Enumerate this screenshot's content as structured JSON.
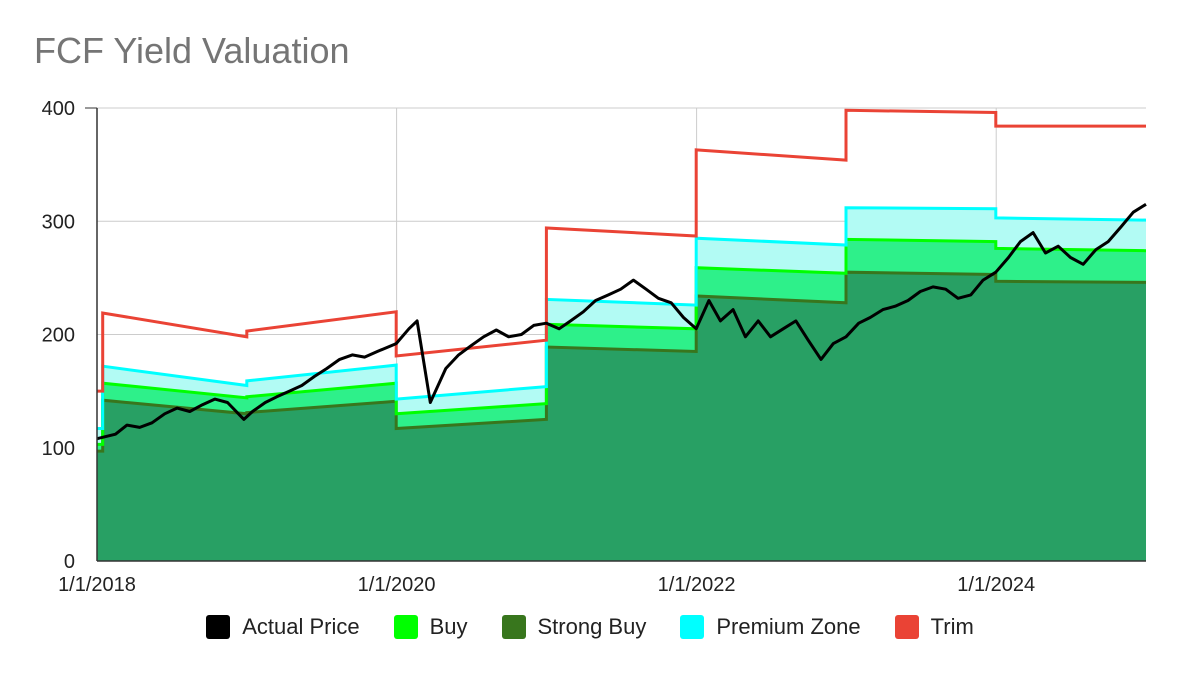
{
  "title": "FCF Yield Valuation",
  "colors": {
    "actual": "#000000",
    "buy": "#00ff00",
    "strong_buy": "#38761d",
    "premium": "#00ffff",
    "trim": "#ea4335",
    "area_strong": "#28a064",
    "area_buy": "#2ef08a",
    "area_premium": "#b2fbf4",
    "grid": "#cccccc"
  },
  "legend": [
    {
      "label": "Actual Price",
      "color": "#000000"
    },
    {
      "label": "Buy",
      "color": "#00ff00"
    },
    {
      "label": "Strong Buy",
      "color": "#38761d"
    },
    {
      "label": "Premium Zone",
      "color": "#00ffff"
    },
    {
      "label": "Trim",
      "color": "#ea4335"
    }
  ],
  "chart_data": {
    "type": "line",
    "title": "FCF Yield Valuation",
    "xlabel": "",
    "ylabel": "",
    "xlim": [
      "2018-01-01",
      "2024-12-31"
    ],
    "ylim": [
      0,
      400
    ],
    "y_ticks": [
      0,
      100,
      200,
      300,
      400
    ],
    "x_ticks": [
      "1/1/2018",
      "1/1/2020",
      "1/1/2022",
      "1/1/2024"
    ],
    "x_tick_dates": [
      "2018-01-01",
      "2020-01-01",
      "2022-01-01",
      "2024-01-01"
    ],
    "grid": true,
    "legend_position": "bottom",
    "series": [
      {
        "name": "Strong Buy",
        "segments": [
          [
            [
              "2018-01-01",
              97
            ],
            [
              "2018-01-15",
              97
            ]
          ],
          [
            [
              "2018-01-15",
              142
            ],
            [
              "2019-01-01",
              130
            ]
          ],
          [
            [
              "2019-01-01",
              131
            ],
            [
              "2019-12-31",
              141
            ]
          ],
          [
            [
              "2019-12-31",
              117
            ],
            [
              "2020-12-31",
              125
            ]
          ],
          [
            [
              "2020-12-31",
              189
            ],
            [
              "2021-12-31",
              185
            ]
          ],
          [
            [
              "2021-12-31",
              234
            ],
            [
              "2022-12-31",
              228
            ]
          ],
          [
            [
              "2022-12-31",
              255
            ],
            [
              "2023-12-31",
              253
            ]
          ],
          [
            [
              "2023-12-31",
              247
            ],
            [
              "2024-12-31",
              246
            ]
          ]
        ]
      },
      {
        "name": "Buy",
        "segments": [
          [
            [
              "2018-01-01",
              103
            ],
            [
              "2018-01-15",
              103
            ]
          ],
          [
            [
              "2018-01-15",
              157
            ],
            [
              "2019-01-01",
              144
            ]
          ],
          [
            [
              "2019-01-01",
              145
            ],
            [
              "2019-12-31",
              157
            ]
          ],
          [
            [
              "2019-12-31",
              130
            ],
            [
              "2020-12-31",
              139
            ]
          ],
          [
            [
              "2020-12-31",
              209
            ],
            [
              "2021-12-31",
              205
            ]
          ],
          [
            [
              "2021-12-31",
              259
            ],
            [
              "2022-12-31",
              254
            ]
          ],
          [
            [
              "2022-12-31",
              284
            ],
            [
              "2023-12-31",
              282
            ]
          ],
          [
            [
              "2023-12-31",
              276
            ],
            [
              "2024-12-31",
              274
            ]
          ]
        ]
      },
      {
        "name": "Premium Zone",
        "segments": [
          [
            [
              "2018-01-01",
              117
            ],
            [
              "2018-01-15",
              117
            ]
          ],
          [
            [
              "2018-01-15",
              172
            ],
            [
              "2019-01-01",
              155
            ]
          ],
          [
            [
              "2019-01-01",
              159
            ],
            [
              "2019-12-31",
              173
            ]
          ],
          [
            [
              "2019-12-31",
              143
            ],
            [
              "2020-12-31",
              154
            ]
          ],
          [
            [
              "2020-12-31",
              231
            ],
            [
              "2021-12-31",
              226
            ]
          ],
          [
            [
              "2021-12-31",
              285
            ],
            [
              "2022-12-31",
              279
            ]
          ],
          [
            [
              "2022-12-31",
              312
            ],
            [
              "2023-12-31",
              311
            ]
          ],
          [
            [
              "2023-12-31",
              303
            ],
            [
              "2024-12-31",
              301
            ]
          ]
        ]
      },
      {
        "name": "Trim",
        "segments": [
          [
            [
              "2018-01-01",
              150
            ],
            [
              "2018-01-15",
              150
            ]
          ],
          [
            [
              "2018-01-15",
              219
            ],
            [
              "2019-01-01",
              198
            ]
          ],
          [
            [
              "2019-01-01",
              203
            ],
            [
              "2019-12-31",
              220
            ]
          ],
          [
            [
              "2019-12-31",
              181
            ],
            [
              "2020-12-31",
              195
            ]
          ],
          [
            [
              "2020-12-31",
              294
            ],
            [
              "2021-12-31",
              287
            ]
          ],
          [
            [
              "2021-12-31",
              363
            ],
            [
              "2022-12-31",
              354
            ]
          ],
          [
            [
              "2022-12-31",
              398
            ],
            [
              "2023-12-31",
              396
            ]
          ],
          [
            [
              "2023-12-31",
              384
            ],
            [
              "2024-12-31",
              384
            ]
          ]
        ]
      },
      {
        "name": "Actual Price",
        "points": [
          [
            "2018-01-01",
            108
          ],
          [
            "2018-02-15",
            112
          ],
          [
            "2018-03-15",
            120
          ],
          [
            "2018-04-15",
            118
          ],
          [
            "2018-05-15",
            122
          ],
          [
            "2018-06-15",
            130
          ],
          [
            "2018-07-15",
            135
          ],
          [
            "2018-08-15",
            132
          ],
          [
            "2018-09-15",
            138
          ],
          [
            "2018-10-15",
            143
          ],
          [
            "2018-11-15",
            140
          ],
          [
            "2018-12-25",
            125
          ],
          [
            "2019-01-15",
            132
          ],
          [
            "2019-02-15",
            140
          ],
          [
            "2019-03-15",
            145
          ],
          [
            "2019-04-15",
            150
          ],
          [
            "2019-05-15",
            155
          ],
          [
            "2019-06-15",
            163
          ],
          [
            "2019-07-15",
            170
          ],
          [
            "2019-08-15",
            178
          ],
          [
            "2019-09-15",
            182
          ],
          [
            "2019-10-15",
            180
          ],
          [
            "2019-11-15",
            185
          ],
          [
            "2019-12-31",
            192
          ],
          [
            "2020-01-31",
            205
          ],
          [
            "2020-02-20",
            212
          ],
          [
            "2020-03-23",
            140
          ],
          [
            "2020-04-30",
            170
          ],
          [
            "2020-05-31",
            182
          ],
          [
            "2020-06-30",
            190
          ],
          [
            "2020-07-31",
            198
          ],
          [
            "2020-08-31",
            204
          ],
          [
            "2020-09-30",
            198
          ],
          [
            "2020-10-31",
            200
          ],
          [
            "2020-11-30",
            208
          ],
          [
            "2020-12-31",
            210
          ],
          [
            "2021-01-31",
            205
          ],
          [
            "2021-02-28",
            212
          ],
          [
            "2021-03-31",
            220
          ],
          [
            "2021-04-30",
            230
          ],
          [
            "2021-05-31",
            235
          ],
          [
            "2021-06-30",
            240
          ],
          [
            "2021-07-31",
            248
          ],
          [
            "2021-08-31",
            240
          ],
          [
            "2021-09-30",
            232
          ],
          [
            "2021-10-31",
            228
          ],
          [
            "2021-11-30",
            215
          ],
          [
            "2021-12-31",
            205
          ],
          [
            "2022-01-31",
            230
          ],
          [
            "2022-02-28",
            212
          ],
          [
            "2022-03-31",
            222
          ],
          [
            "2022-04-30",
            198
          ],
          [
            "2022-05-31",
            212
          ],
          [
            "2022-06-30",
            198
          ],
          [
            "2022-07-31",
            205
          ],
          [
            "2022-08-31",
            212
          ],
          [
            "2022-09-30",
            195
          ],
          [
            "2022-10-31",
            178
          ],
          [
            "2022-11-30",
            192
          ],
          [
            "2022-12-31",
            198
          ],
          [
            "2023-01-31",
            210
          ],
          [
            "2023-02-28",
            215
          ],
          [
            "2023-03-31",
            222
          ],
          [
            "2023-04-30",
            225
          ],
          [
            "2023-05-31",
            230
          ],
          [
            "2023-06-30",
            238
          ],
          [
            "2023-07-31",
            242
          ],
          [
            "2023-08-31",
            240
          ],
          [
            "2023-09-30",
            232
          ],
          [
            "2023-10-31",
            235
          ],
          [
            "2023-11-30",
            248
          ],
          [
            "2023-12-31",
            255
          ],
          [
            "2024-01-31",
            268
          ],
          [
            "2024-02-29",
            282
          ],
          [
            "2024-03-31",
            290
          ],
          [
            "2024-04-30",
            272
          ],
          [
            "2024-05-31",
            278
          ],
          [
            "2024-06-30",
            268
          ],
          [
            "2024-07-31",
            262
          ],
          [
            "2024-08-31",
            275
          ],
          [
            "2024-09-30",
            282
          ],
          [
            "2024-10-31",
            295
          ],
          [
            "2024-11-30",
            308
          ],
          [
            "2024-12-31",
            315
          ]
        ]
      }
    ]
  }
}
